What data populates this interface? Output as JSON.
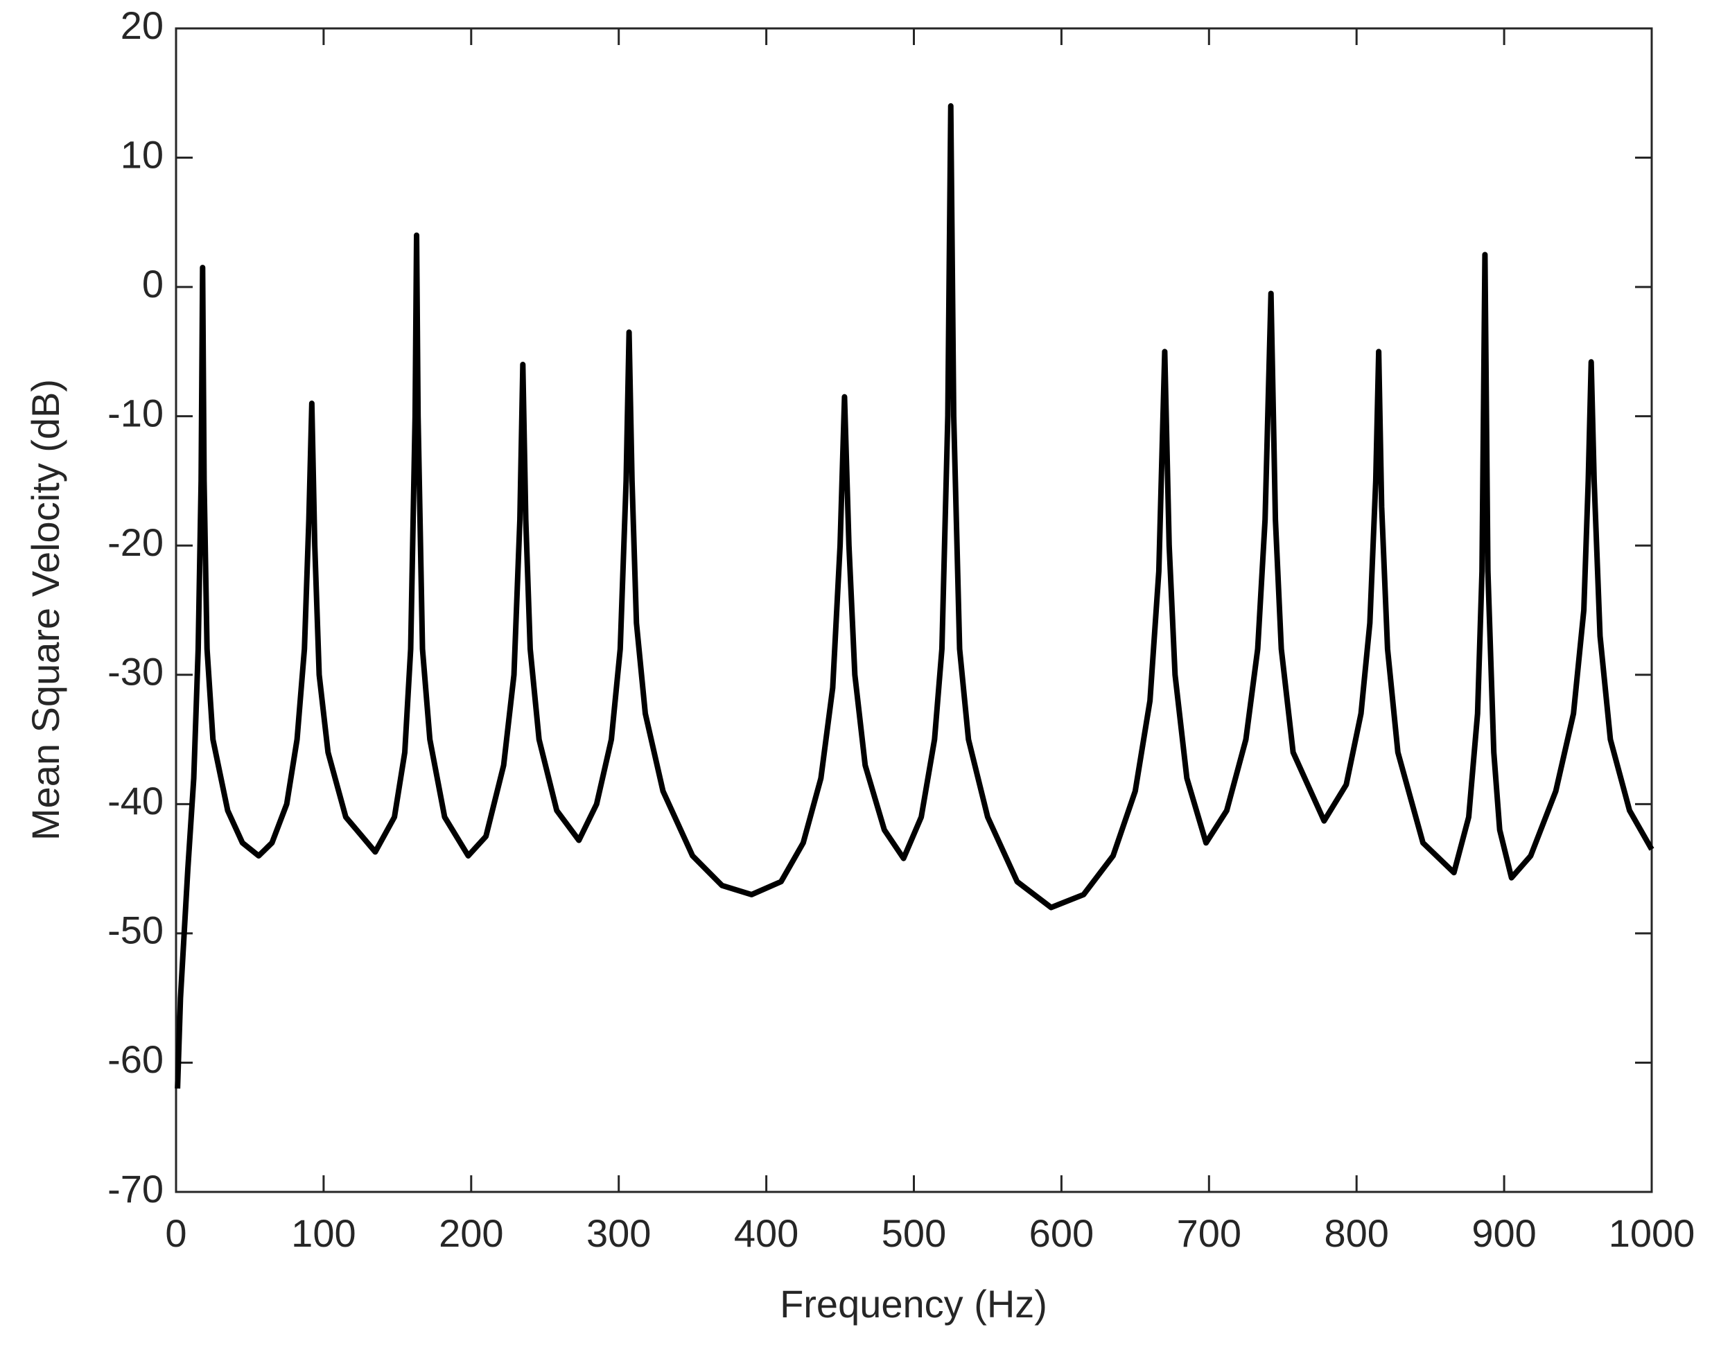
{
  "chart_data": {
    "type": "line",
    "xlabel": "Frequency (Hz)",
    "ylabel": "Mean Square Velocity (dB)",
    "xlim": [
      0,
      1000
    ],
    "ylim": [
      -70,
      20
    ],
    "xticks": [
      0,
      100,
      200,
      300,
      400,
      500,
      600,
      700,
      800,
      900,
      1000
    ],
    "yticks": [
      -70,
      -60,
      -50,
      -40,
      -30,
      -20,
      -10,
      0,
      10,
      20
    ],
    "color": "#000000",
    "x": [
      1,
      3,
      8,
      12,
      15,
      17,
      18,
      19,
      21,
      25,
      35,
      45,
      56,
      65,
      75,
      82,
      87,
      90,
      92,
      94,
      97,
      103,
      115,
      135,
      148,
      155,
      159,
      162,
      163,
      164,
      167,
      172,
      182,
      198,
      210,
      222,
      229,
      233,
      235,
      237,
      240,
      246,
      258,
      273,
      285,
      295,
      301,
      305,
      307,
      309,
      312,
      318,
      330,
      350,
      370,
      390,
      410,
      425,
      437,
      445,
      450,
      453,
      456,
      460,
      467,
      480,
      493,
      505,
      514,
      519,
      523,
      525,
      527,
      531,
      537,
      550,
      570,
      593,
      615,
      635,
      650,
      660,
      666,
      670,
      673,
      677,
      685,
      698,
      712,
      725,
      733,
      738,
      742,
      745,
      749,
      757,
      778,
      793,
      803,
      809,
      813,
      815,
      817,
      821,
      828,
      845,
      866,
      876,
      882,
      885,
      887,
      889,
      893,
      897,
      905,
      918,
      935,
      947,
      954,
      957,
      959,
      961,
      965,
      972,
      985,
      1000
    ],
    "values": [
      -62,
      -55,
      -45,
      -38,
      -28,
      -15,
      1.5,
      -15,
      -28,
      -35,
      -40.5,
      -43,
      -44,
      -43,
      -40,
      -35,
      -28,
      -18,
      -9,
      -20,
      -30,
      -36,
      -41,
      -43.7,
      -41,
      -36,
      -28,
      -10,
      4,
      -10,
      -28,
      -35,
      -41,
      -44,
      -42.5,
      -37,
      -30,
      -18,
      -6,
      -18,
      -28,
      -35,
      -40.5,
      -42.8,
      -40,
      -35,
      -28,
      -15,
      -3.5,
      -15,
      -26,
      -33,
      -39,
      -44,
      -46.3,
      -47,
      -46,
      -43,
      -38,
      -31,
      -20,
      -8.5,
      -20,
      -30,
      -37,
      -42,
      -44.2,
      -41,
      -35,
      -28,
      -10,
      14,
      -10,
      -28,
      -35,
      -41,
      -46,
      -48,
      -47,
      -44,
      -39,
      -32,
      -22,
      -5,
      -20,
      -30,
      -38,
      -43,
      -40.5,
      -35,
      -28,
      -18,
      -0.5,
      -18,
      -28,
      -36,
      -41.3,
      -38.5,
      -33,
      -26,
      -15,
      -5,
      -17,
      -28,
      -36,
      -43,
      -45.3,
      -41,
      -33,
      -22,
      2.5,
      -22,
      -36,
      -42,
      -45.7,
      -44,
      -39,
      -33,
      -25,
      -15,
      -5.8,
      -15,
      -27,
      -35,
      -40.5,
      -43.5
    ]
  }
}
